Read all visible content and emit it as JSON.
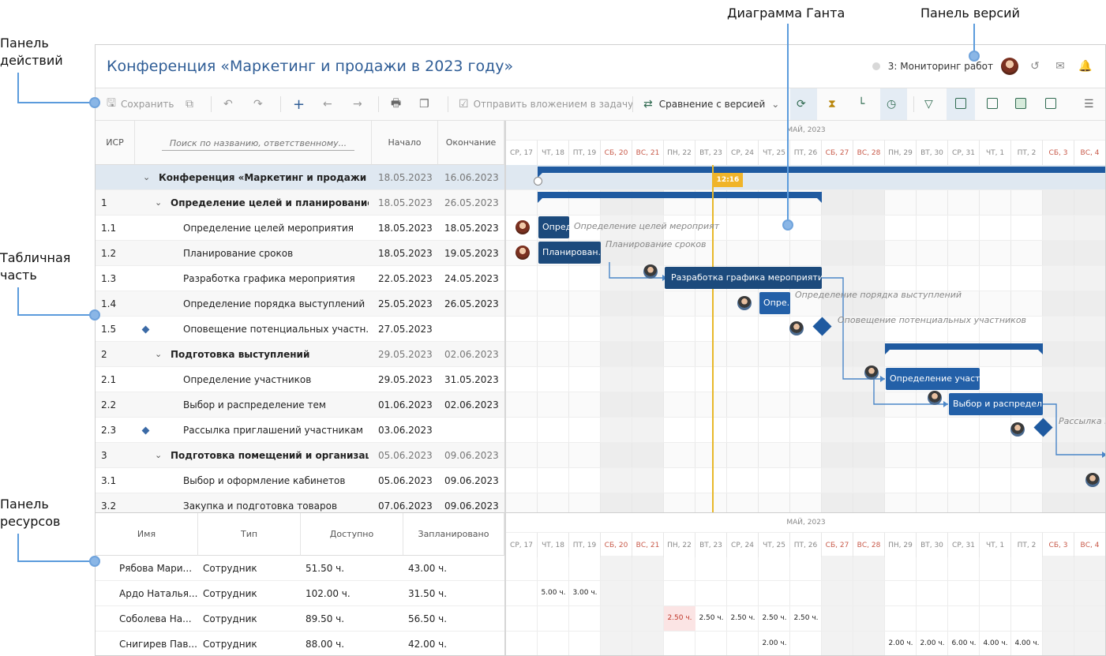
{
  "callouts": {
    "actions": "Панель\nдействий",
    "gantt": "Диаграмма Ганта",
    "versions": "Панель версий",
    "table": "Табличная\nчасть",
    "resources": "Панель\nресурсов"
  },
  "header": {
    "title": "Конференция «Маркетинг и продажи в 2023 году»",
    "version": "3: Мониторинг работ"
  },
  "toolbar": {
    "save": "Сохранить",
    "send": "Отправить вложением в задачу",
    "compare": "Сравнение с версией"
  },
  "grid": {
    "col_wbs": "ИСР",
    "search_placeholder": "Поиск по названию, ответственному...",
    "col_start": "Начало",
    "col_end": "Окончание",
    "rows": [
      {
        "wbs": "",
        "name": "Конференция «Маркетинг и продажи в...",
        "start": "18.05.2023",
        "end": "16.06.2023",
        "level": 0,
        "summary": true
      },
      {
        "wbs": "1",
        "name": "Определение целей и планирование",
        "start": "18.05.2023",
        "end": "26.05.2023",
        "level": 1,
        "summary": true
      },
      {
        "wbs": "1.1",
        "name": "Определение целей мероприятия",
        "start": "18.05.2023",
        "end": "18.05.2023",
        "level": 2
      },
      {
        "wbs": "1.2",
        "name": "Планирование сроков",
        "start": "18.05.2023",
        "end": "19.05.2023",
        "level": 2
      },
      {
        "wbs": "1.3",
        "name": "Разработка графика мероприятия",
        "start": "22.05.2023",
        "end": "24.05.2023",
        "level": 2
      },
      {
        "wbs": "1.4",
        "name": "Определение порядка выступлений",
        "start": "25.05.2023",
        "end": "26.05.2023",
        "level": 2
      },
      {
        "wbs": "1.5",
        "name": "Оповещение потенциальных участн...",
        "start": "27.05.2023",
        "end": "",
        "level": 2,
        "milestone": true
      },
      {
        "wbs": "2",
        "name": "Подготовка выступлений",
        "start": "29.05.2023",
        "end": "02.06.2023",
        "level": 1,
        "summary": true
      },
      {
        "wbs": "2.1",
        "name": "Определение участников",
        "start": "29.05.2023",
        "end": "31.05.2023",
        "level": 2
      },
      {
        "wbs": "2.2",
        "name": "Выбор и распределение тем",
        "start": "01.06.2023",
        "end": "02.06.2023",
        "level": 2
      },
      {
        "wbs": "2.3",
        "name": "Рассылка приглашений участникам",
        "start": "03.06.2023",
        "end": "",
        "level": 2,
        "milestone": true
      },
      {
        "wbs": "3",
        "name": "Подготовка помещений и организац...",
        "start": "05.06.2023",
        "end": "09.06.2023",
        "level": 1,
        "summary": true
      },
      {
        "wbs": "3.1",
        "name": "Выбор и оформление кабинетов",
        "start": "05.06.2023",
        "end": "09.06.2023",
        "level": 2
      },
      {
        "wbs": "3.2",
        "name": "Закупка и подготовка товаров",
        "start": "07.06.2023",
        "end": "09.06.2023",
        "level": 2
      }
    ]
  },
  "gantt": {
    "month": "МАЙ, 2023",
    "now": "12:16",
    "days": [
      {
        "label": "СР, 17",
        "weekend": false
      },
      {
        "label": "ЧТ, 18",
        "weekend": false
      },
      {
        "label": "ПТ, 19",
        "weekend": false
      },
      {
        "label": "СБ, 20",
        "weekend": true
      },
      {
        "label": "ВС, 21",
        "weekend": true
      },
      {
        "label": "ПН, 22",
        "weekend": false
      },
      {
        "label": "ВТ, 23",
        "weekend": false
      },
      {
        "label": "СР, 24",
        "weekend": false
      },
      {
        "label": "ЧТ, 25",
        "weekend": false
      },
      {
        "label": "ПТ, 26",
        "weekend": false
      },
      {
        "label": "СБ, 27",
        "weekend": true
      },
      {
        "label": "ВС, 28",
        "weekend": true
      },
      {
        "label": "ПН, 29",
        "weekend": false
      },
      {
        "label": "ВТ, 30",
        "weekend": false
      },
      {
        "label": "СР, 31",
        "weekend": false
      },
      {
        "label": "ЧТ, 1",
        "weekend": false
      },
      {
        "label": "ПТ, 2",
        "weekend": false
      },
      {
        "label": "СБ, 3",
        "weekend": true
      },
      {
        "label": "ВС, 4",
        "weekend": true
      }
    ],
    "bars": {
      "t11": "Опред",
      "t11_label": "Определение целей мероприят",
      "t12": "Планирован...",
      "t12_label": "Планирование сроков",
      "t13": "Разработка графика мероприятия",
      "t14": "Опре...",
      "t14_label": "Определение порядка выступлений",
      "t15_label": "Оповещение потенциальных участников",
      "t21": "Определение участ...",
      "t22": "Выбор и распредел...",
      "t23_label": "Рассылка п"
    }
  },
  "resources": {
    "col_name": "Имя",
    "col_type": "Тип",
    "col_avail": "Доступно",
    "col_planned": "Запланировано",
    "rows": [
      {
        "name": "Рябова Мари...",
        "type": "Сотрудник",
        "avail": "51.50 ч.",
        "planned": "43.00 ч.",
        "cells": []
      },
      {
        "name": "Ардо Наталья...",
        "type": "Сотрудник",
        "avail": "102.00 ч.",
        "planned": "31.50 ч.",
        "cells": [
          {
            "day": 1,
            "v": "5.00 ч."
          },
          {
            "day": 2,
            "v": "3.00 ч."
          }
        ]
      },
      {
        "name": "Соболева На...",
        "type": "Сотрудник",
        "avail": "89.50 ч.",
        "planned": "56.50 ч.",
        "cells": [
          {
            "day": 5,
            "v": "2.50 ч.",
            "over": true
          },
          {
            "day": 6,
            "v": "2.50 ч."
          },
          {
            "day": 7,
            "v": "2.50 ч."
          },
          {
            "day": 8,
            "v": "2.50 ч."
          },
          {
            "day": 9,
            "v": "2.50 ч."
          }
        ]
      },
      {
        "name": "Снигирев Пав...",
        "type": "Сотрудник",
        "avail": "88.00 ч.",
        "planned": "42.00 ч.",
        "cells": [
          {
            "day": 8,
            "v": "2.00 ч."
          },
          {
            "day": 12,
            "v": "2.00 ч."
          },
          {
            "day": 13,
            "v": "2.00 ч."
          },
          {
            "day": 14,
            "v": "6.00 ч."
          },
          {
            "day": 15,
            "v": "4.00 ч."
          },
          {
            "day": 16,
            "v": "4.00 ч."
          }
        ]
      }
    ]
  }
}
